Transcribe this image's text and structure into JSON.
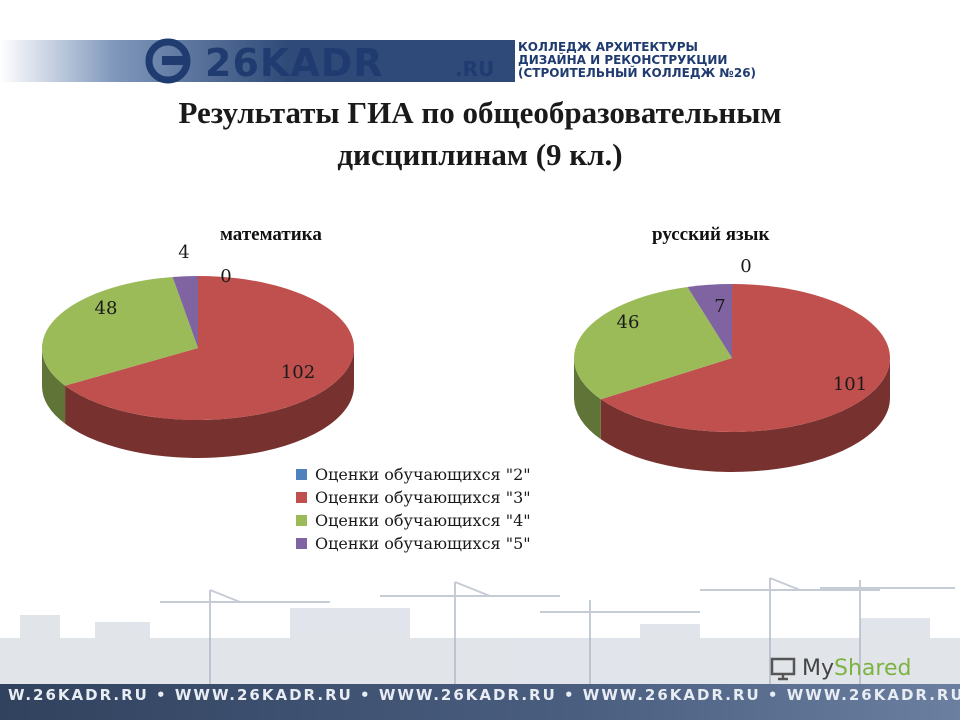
{
  "header": {
    "logo_text": "26KADR",
    "logo_suffix": ".RU",
    "college_line1": "КОЛЛЕДЖ АРХИТЕКТУРЫ",
    "college_line2": "ДИЗАЙНА И РЕКОНСТРУКЦИИ",
    "college_line3": "(СТРОИТЕЛЬНЫЙ КОЛЛЕДЖ №26)"
  },
  "title_line1": "Результаты ГИА по общеобразовательным",
  "title_line2": "дисциплинам (9 кл.)",
  "colors": {
    "grade2": "#4f81bd",
    "grade3": "#c0504d",
    "grade4": "#9bbb59",
    "grade5": "#8064a2",
    "header_band": "#2f4a78"
  },
  "chart_data": [
    {
      "type": "pie",
      "title": "математика",
      "categories": [
        "Оценки обучающихся \"2\"",
        "Оценки обучающихся \"3\"",
        "Оценки обучающихся \"4\"",
        "Оценки обучающихся \"5\""
      ],
      "values": [
        0,
        102,
        48,
        4
      ],
      "legend": "bottom"
    },
    {
      "type": "pie",
      "title": "русский язык",
      "categories": [
        "Оценки обучающихся \"2\"",
        "Оценки обучающихся \"3\"",
        "Оценки обучающихся \"4\"",
        "Оценки обучающихся \"5\""
      ],
      "values": [
        0,
        101,
        46,
        7
      ],
      "legend": "bottom"
    }
  ],
  "legend": {
    "items": [
      "Оценки обучающихся \"2\"",
      "Оценки обучающихся \"3\"",
      "Оценки обучающихся \"4\"",
      "Оценки обучающихся \"5\""
    ]
  },
  "footer": {
    "url_text": "W.26KADR.RU • WWW.26KADR.RU • WWW.26KADR.RU • WWW.26KADR.RU • WWW.26KADR.RU",
    "brand": "MyShared",
    "brand_my": "My",
    "brand_rest": "Shared"
  }
}
